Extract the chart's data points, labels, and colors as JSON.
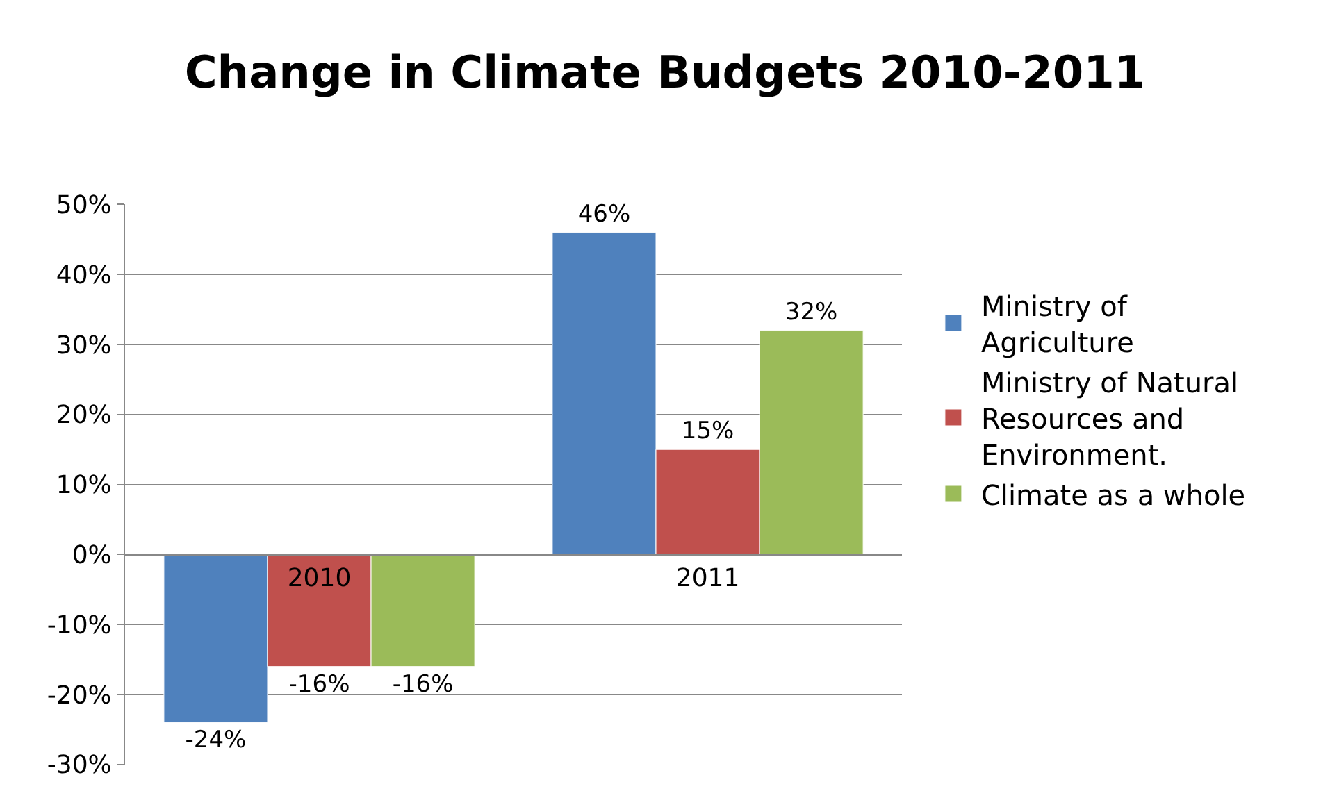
{
  "chart_data": {
    "type": "bar",
    "title": "Change in Climate Budgets 2010-2011",
    "categories": [
      "2010",
      "2011"
    ],
    "series": [
      {
        "name": "Ministry of Agriculture",
        "color": "#4f81bd",
        "values": [
          -24,
          46
        ],
        "value_labels": [
          "-24%",
          "46%"
        ]
      },
      {
        "name": "Ministry of Natural Resources and Environment.",
        "color": "#c0504d",
        "values": [
          -16,
          15
        ],
        "value_labels": [
          "-16%",
          "15%"
        ]
      },
      {
        "name": "Climate as a whole",
        "color": "#9bbb59",
        "values": [
          -16,
          32
        ],
        "value_labels": [
          "-16%",
          "32%"
        ]
      }
    ],
    "ylim": [
      -30,
      50
    ],
    "yticks": [
      {
        "value": -30,
        "label": "-30%"
      },
      {
        "value": -20,
        "label": "-20%"
      },
      {
        "value": -10,
        "label": "-10%"
      },
      {
        "value": 0,
        "label": "0%"
      },
      {
        "value": 10,
        "label": "10%"
      },
      {
        "value": 20,
        "label": "20%"
      },
      {
        "value": 30,
        "label": "30%"
      },
      {
        "value": 40,
        "label": "40%"
      },
      {
        "value": 50,
        "label": "50%"
      }
    ],
    "grid": "y",
    "legend": "right"
  }
}
